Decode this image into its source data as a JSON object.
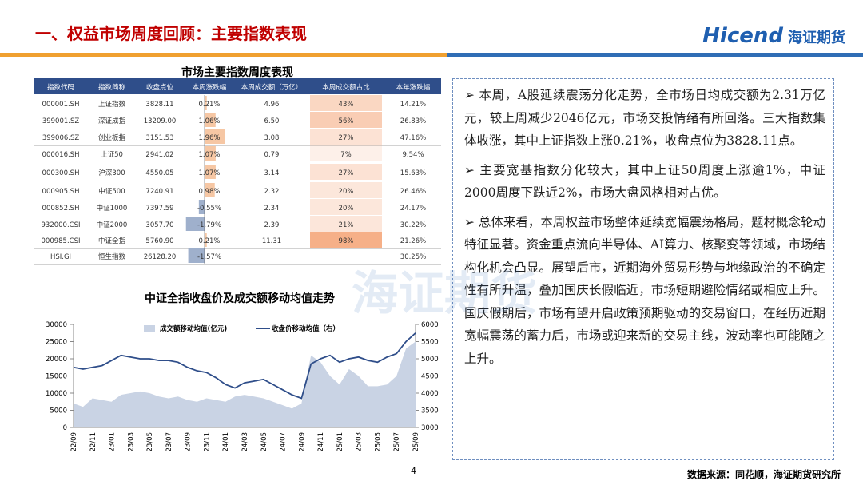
{
  "header": {
    "title": "一、权益市场周度回顾：主要指数表现",
    "logo_en": "Hicend",
    "logo_cn": "海证期货"
  },
  "watermark": "海证期货",
  "table": {
    "title": "市场主要指数周度表现",
    "columns": [
      "指数代码",
      "指数简称",
      "收盘点位",
      "本周涨跌幅",
      "本周成交额（万亿）",
      "本周成交额占比",
      "本年涨跌幅"
    ],
    "rows": [
      [
        "000001.SH",
        "上证指数",
        "3828.11",
        "0.21%",
        "4.96",
        "43%",
        "14.21%"
      ],
      [
        "399001.SZ",
        "深证成指",
        "13209.00",
        "1.06%",
        "6.50",
        "56%",
        "26.83%"
      ],
      [
        "399006.SZ",
        "创业板指",
        "3151.53",
        "1.96%",
        "3.08",
        "27%",
        "47.16%"
      ],
      [
        "000016.SH",
        "上证50",
        "2941.02",
        "1.07%",
        "0.79",
        "7%",
        "9.54%"
      ],
      [
        "000300.SH",
        "沪深300",
        "4550.05",
        "1.07%",
        "3.14",
        "27%",
        "15.63%"
      ],
      [
        "000905.SH",
        "中证500",
        "7240.91",
        "0.98%",
        "2.32",
        "20%",
        "26.46%"
      ],
      [
        "000852.SH",
        "中证1000",
        "7397.59",
        "-0.55%",
        "2.34",
        "20%",
        "24.17%"
      ],
      [
        "932000.CSI",
        "中证2000",
        "3057.70",
        "-1.79%",
        "2.39",
        "21%",
        "30.22%"
      ],
      [
        "000985.CSI",
        "中证全指",
        "5760.90",
        "0.21%",
        "11.31",
        "98%",
        "21.26%"
      ],
      [
        "HSI.GI",
        "恒生指数",
        "26128.20",
        "-1.57%",
        null,
        null,
        "30.25%"
      ]
    ]
  },
  "chart_data": {
    "type": "line",
    "title": "中证全指收盘价及成交额移动均值走势",
    "categories": [
      "22/09",
      null,
      "22/11",
      null,
      "23/01",
      null,
      "23/03",
      null,
      "23/05",
      null,
      "23/07",
      null,
      "23/09",
      null,
      "23/11",
      null,
      "24/01",
      null,
      "24/03",
      null,
      "24/05",
      null,
      "24/07",
      null,
      "24/09",
      null,
      "24/11",
      null,
      "25/01",
      null,
      "25/03",
      null,
      "25/05",
      null,
      "25/07",
      null,
      "25/09"
    ],
    "series": [
      {
        "name": "成交额移动均值(亿元)",
        "type": "area",
        "color": "#c9d3e4",
        "values": [
          7000,
          6000,
          8500,
          8000,
          7500,
          9500,
          10000,
          10500,
          10000,
          9000,
          8500,
          9000,
          8000,
          7500,
          8500,
          8000,
          7500,
          9000,
          9500,
          9000,
          8500,
          7500,
          6500,
          5500,
          7000,
          21000,
          19000,
          15000,
          12500,
          17000,
          15000,
          12000,
          12000,
          12500,
          15000,
          23000,
          25000
        ]
      },
      {
        "name": "收盘价移动均值（右）",
        "type": "line",
        "axis": "y2",
        "color": "#2f4e8a",
        "values": [
          4750,
          4700,
          4750,
          4800,
          4950,
          5100,
          5050,
          5000,
          5000,
          4950,
          4950,
          4900,
          4750,
          4650,
          4600,
          4450,
          4250,
          4150,
          4300,
          4350,
          4400,
          4250,
          4100,
          3950,
          3850,
          4850,
          5000,
          5100,
          4900,
          5000,
          5050,
          4950,
          4900,
          5050,
          5150,
          5500,
          5750
        ]
      }
    ],
    "ylim": [
      0,
      30000
    ],
    "yticks": [
      0,
      5000,
      10000,
      15000,
      20000,
      25000,
      30000
    ],
    "y2lim": [
      3000,
      6000
    ],
    "y2ticks": [
      3000,
      3500,
      4000,
      4500,
      5000,
      5500,
      6000
    ]
  },
  "text": {
    "bullets": [
      "本周，A股延续震荡分化走势，全市场日均成交额为2.31万亿元，较上周减少2046亿元，市场交投情绪有所回落。三大指数集体收涨，其中上证指数上涨0.21%，收盘点位为3828.11点。",
      "主要宽基指数分化较大，其中上证50周度上涨逾1%，中证2000周度下跌近2%，市场大盘风格相对占优。",
      "总体来看，本周权益市场整体延续宽幅震荡格局，题材概念轮动特征显著。资金重点流向半导体、AI算力、核聚变等领域，市场结构化机会凸显。展望后市，近期海外贸易形势与地缘政治的不确定性有所升温，叠加国庆长假临近，市场短期避险情绪或相应上升。国庆假期后，市场有望开启政策预期驱动的交易窗口，在经历近期宽幅震荡的蓄力后，市场或迎来新的交易主线，波动率也可能随之上升。"
    ]
  },
  "footer": {
    "page": "4",
    "source": "数据来源：同花顺，海证期货研究所"
  }
}
